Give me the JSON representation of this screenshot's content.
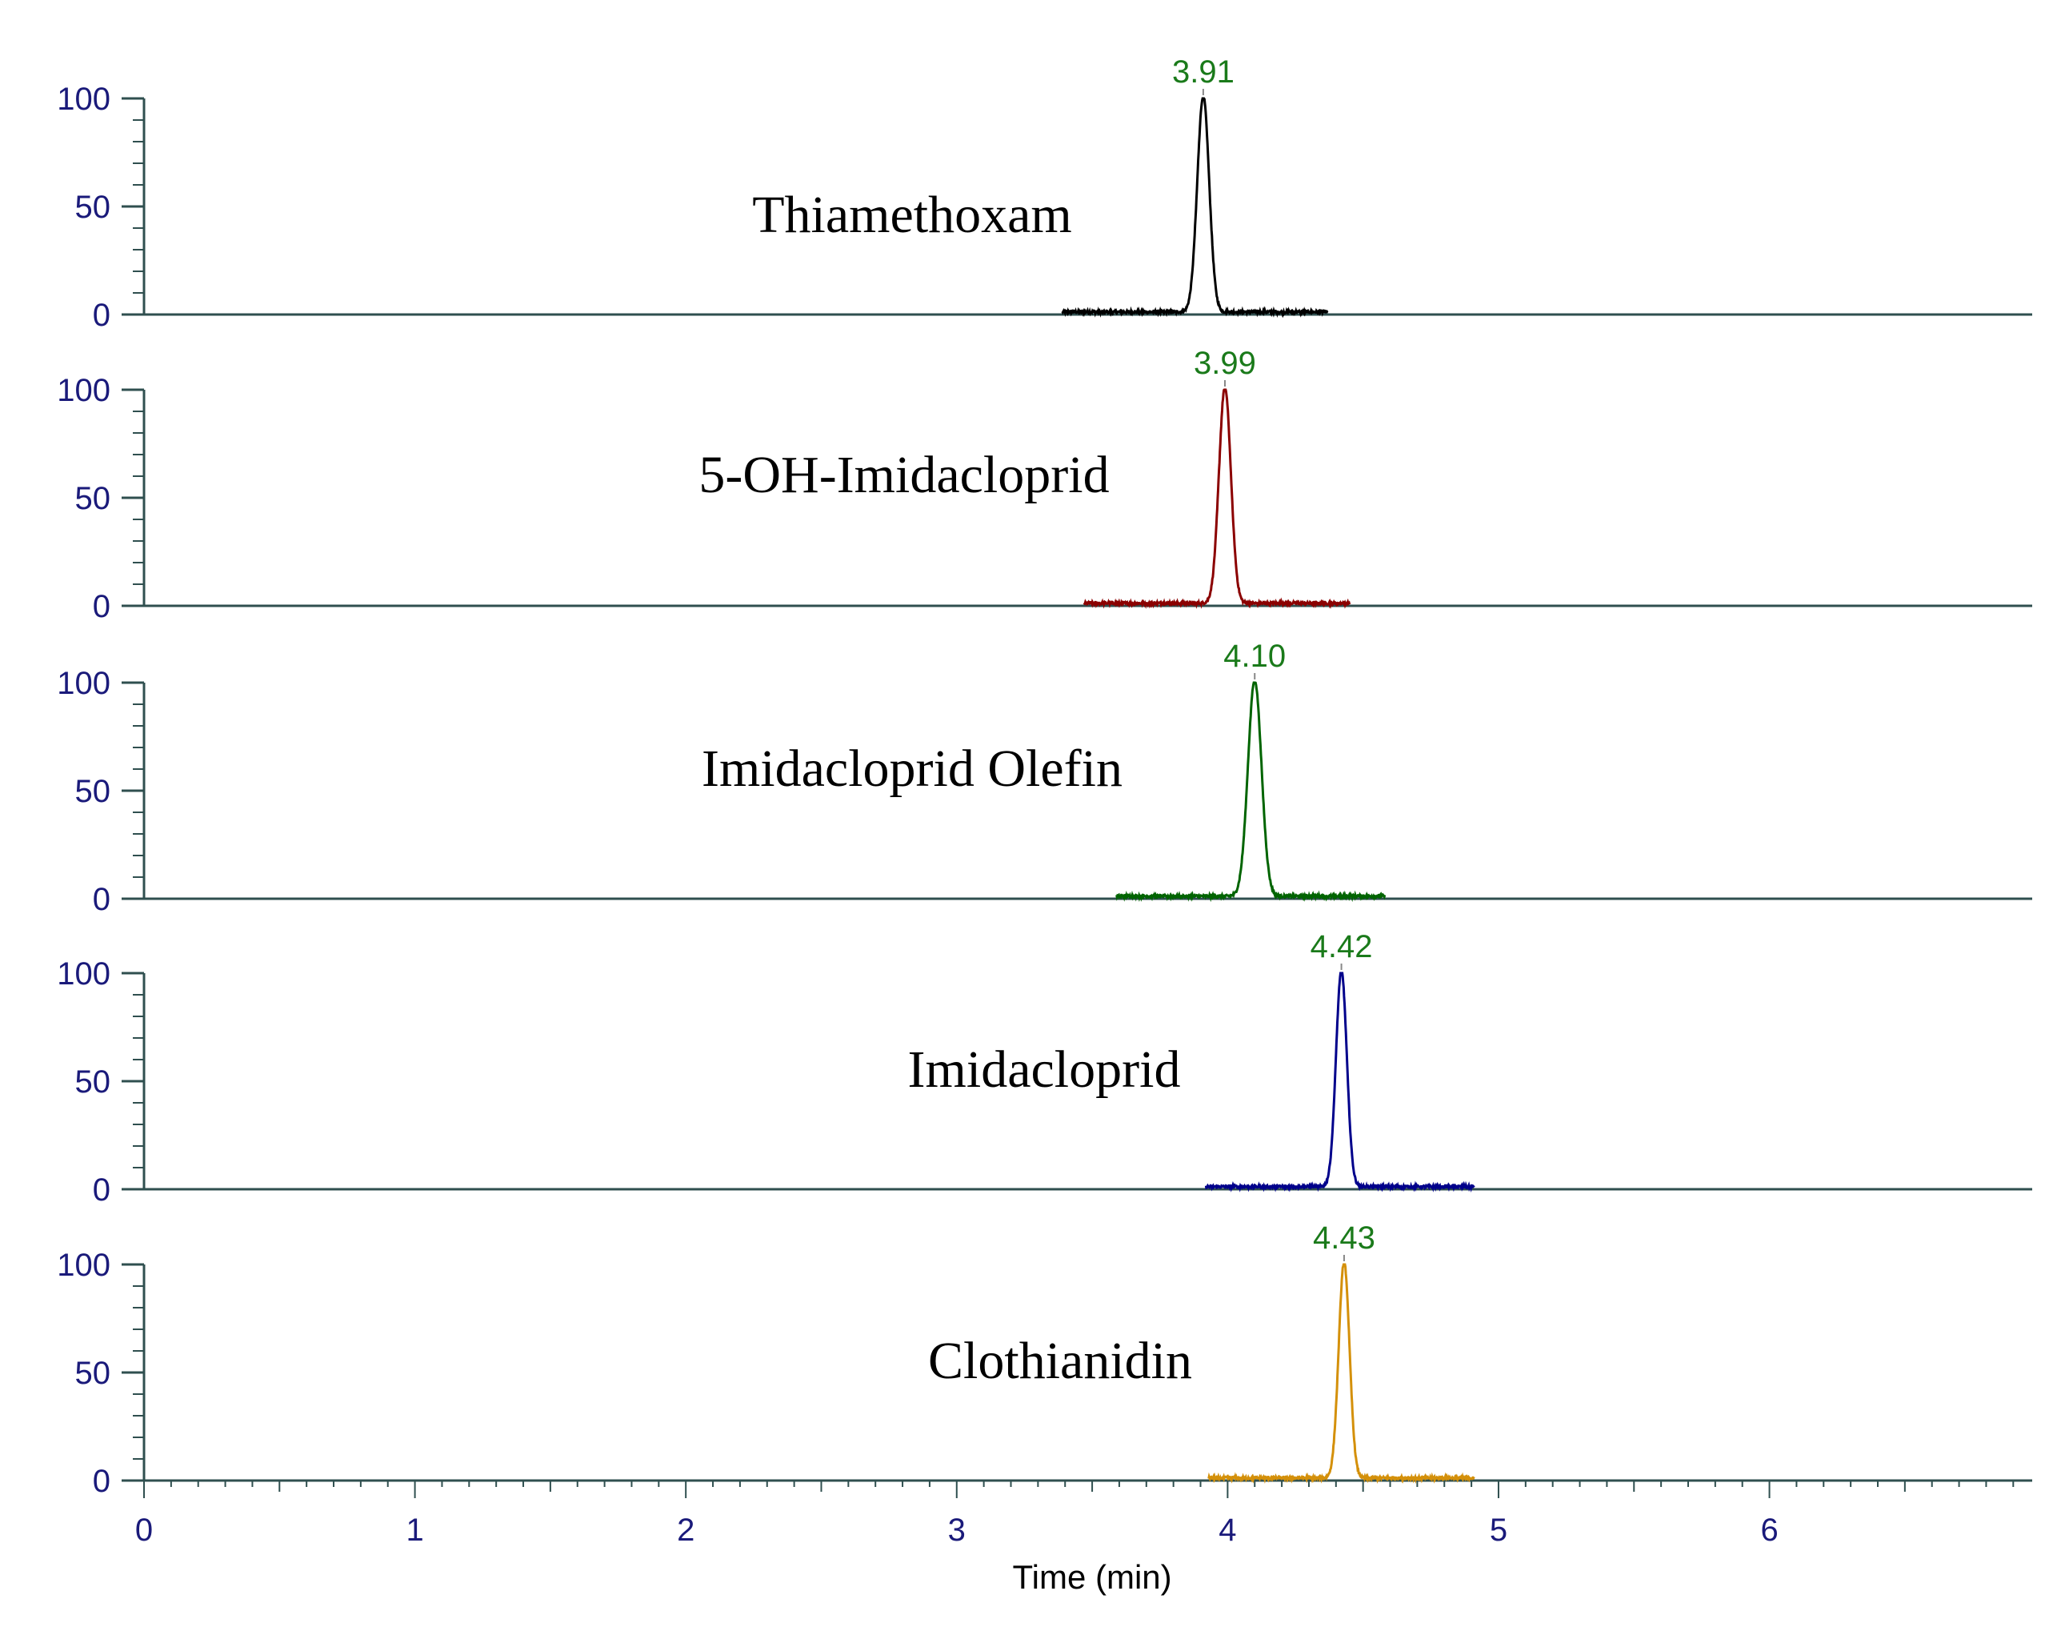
{
  "chart_data": {
    "type": "line",
    "xlabel": "Time (min)",
    "xlim": [
      0,
      6.97
    ],
    "x_ticks": [
      "0",
      "1",
      "2",
      "3",
      "4",
      "5",
      "6"
    ],
    "ylim": [
      0,
      100
    ],
    "y_ticks": [
      "0",
      "50",
      "100"
    ],
    "axis_color": "#2f4f4f",
    "tick_label_color": "#1a1a7a",
    "peak_label_color": "#1a7a1a",
    "series": [
      {
        "name": "Thiamethoxam",
        "peak_rt": 3.91,
        "peak_label": "3.91",
        "peak_height": 100,
        "peak_width": 0.022,
        "x_range": [
          3.39,
          4.37
        ],
        "color": "#000000"
      },
      {
        "name": "5-OH-Imidacloprid",
        "peak_rt": 3.99,
        "peak_label": "3.99",
        "peak_height": 100,
        "peak_width": 0.022,
        "x_range": [
          3.47,
          4.45
        ],
        "color": "#8b0000"
      },
      {
        "name": "Imidacloprid Olefin",
        "peak_rt": 4.1,
        "peak_label": "4.10",
        "peak_height": 100,
        "peak_width": 0.025,
        "x_range": [
          3.59,
          4.58
        ],
        "color": "#006400"
      },
      {
        "name": "Imidacloprid",
        "peak_rt": 4.42,
        "peak_label": "4.42",
        "peak_height": 100,
        "peak_width": 0.02,
        "x_range": [
          3.92,
          4.91
        ],
        "color": "#00008b"
      },
      {
        "name": "Clothianidin",
        "peak_rt": 4.43,
        "peak_label": "4.43",
        "peak_height": 100,
        "peak_width": 0.02,
        "x_range": [
          3.93,
          4.91
        ],
        "color": "#d4900a"
      }
    ]
  }
}
